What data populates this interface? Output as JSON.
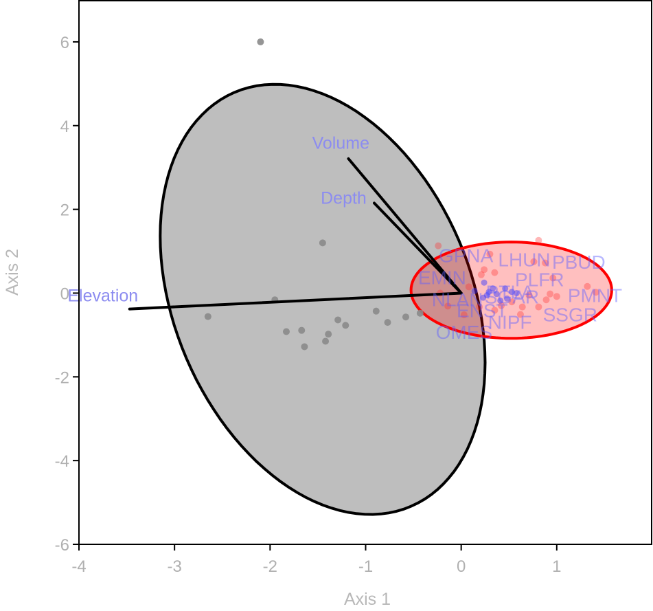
{
  "chart_data": {
    "type": "scatter",
    "xlabel": "Axis 1",
    "ylabel": "Axis 2",
    "xlim": [
      -4,
      2
    ],
    "ylim": [
      -6,
      7
    ],
    "x_ticks": [
      -4,
      -3,
      -2,
      -1,
      0,
      1
    ],
    "y_ticks": [
      -6,
      -4,
      -2,
      0,
      2,
      4,
      6
    ],
    "grid": false,
    "colors": {
      "group_gray": "#8a8a8a",
      "ellipse_gray": "#bebebe",
      "group_red": "#ff3030",
      "ellipse_red": "#ff0000",
      "species_blue": "#3030ff",
      "label_blue": "#7070f0"
    },
    "groups": [
      {
        "color": "gray",
        "points": [
          [
            -2.1,
            6.0
          ],
          [
            -1.45,
            1.2
          ],
          [
            -1.95,
            -0.16
          ],
          [
            -2.65,
            -0.56
          ],
          [
            -1.83,
            -0.92
          ],
          [
            -1.67,
            -0.89
          ],
          [
            -1.64,
            -1.28
          ],
          [
            -1.42,
            -1.15
          ],
          [
            -1.39,
            -0.98
          ],
          [
            -1.29,
            -0.64
          ],
          [
            -1.21,
            -0.77
          ],
          [
            -0.89,
            -0.43
          ],
          [
            -0.77,
            -0.7
          ],
          [
            -0.58,
            -0.57
          ],
          [
            -0.43,
            -0.48
          ]
        ],
        "ellipse": {
          "center": [
            -1.45,
            -0.15
          ],
          "axis_u": [
            1.7,
            -1.51
          ],
          "axis_v": [
            0,
            4.91
          ]
        }
      },
      {
        "color": "red",
        "points": [
          [
            -0.24,
            1.13
          ],
          [
            0.3,
            0.93
          ],
          [
            0.24,
            0.56
          ],
          [
            0.21,
            0.44
          ],
          [
            0.35,
            0.49
          ],
          [
            0.08,
            0.15
          ],
          [
            -0.22,
            0.0
          ],
          [
            -0.14,
            -0.31
          ],
          [
            0.03,
            -0.52
          ],
          [
            0.19,
            -0.33
          ],
          [
            0.62,
            -0.51
          ],
          [
            0.81,
            1.26
          ],
          [
            0.76,
            0.75
          ],
          [
            0.88,
            0.72
          ],
          [
            0.96,
            0.36
          ],
          [
            1.32,
            0.16
          ],
          [
            1.41,
            0.02
          ],
          [
            0.93,
            -0.02
          ],
          [
            1.0,
            -0.08
          ],
          [
            0.89,
            -0.16
          ],
          [
            0.81,
            -0.33
          ],
          [
            0.64,
            -0.33
          ],
          [
            0.42,
            -0.3
          ],
          [
            0.53,
            -0.21
          ],
          [
            0.71,
            -0.05
          ],
          [
            0.35,
            -0.41
          ]
        ],
        "ellipse": {
          "center": [
            0.525,
            0.07
          ],
          "axis_u": [
            1.05,
            0
          ],
          "axis_v": [
            0,
            1.15
          ]
        }
      }
    ],
    "species_points": [
      [
        0.24,
        0.25
      ],
      [
        0.33,
        0.11
      ],
      [
        0.27,
        -0.05
      ],
      [
        0.23,
        -0.11
      ],
      [
        0.29,
        0.03
      ],
      [
        0.37,
        -0.02
      ],
      [
        0.46,
        0.11
      ],
      [
        0.53,
        0.03
      ],
      [
        0.48,
        -0.13
      ],
      [
        0.41,
        -0.18
      ],
      [
        0.58,
        0.0
      ],
      [
        0.14,
        0.05
      ]
    ],
    "species_labels": [
      {
        "label": "GPNA",
        "x": 0.05,
        "y": 0.9
      },
      {
        "label": "LHUN",
        "x": 0.66,
        "y": 0.8
      },
      {
        "label": "PBUD",
        "x": 1.23,
        "y": 0.75
      },
      {
        "label": "EMIN",
        "x": -0.2,
        "y": 0.38
      },
      {
        "label": "PLFR",
        "x": 0.82,
        "y": 0.33
      },
      {
        "label": "PTLA",
        "x": 0.51,
        "y": 0.03
      },
      {
        "label": "NLAN",
        "x": -0.04,
        "y": -0.15
      },
      {
        "label": "SGAR",
        "x": 0.53,
        "y": -0.08
      },
      {
        "label": "PMNT",
        "x": 1.4,
        "y": -0.05
      },
      {
        "label": "ENST",
        "x": 0.22,
        "y": -0.41
      },
      {
        "label": "SSGR",
        "x": 1.14,
        "y": -0.51
      },
      {
        "label": "NIPF",
        "x": 0.51,
        "y": -0.69
      },
      {
        "label": "OMES",
        "x": 0.03,
        "y": -0.93
      }
    ],
    "vectors": [
      {
        "label": "Volume",
        "x": -1.18,
        "y": 3.21,
        "label_x": -1.26,
        "label_y": 3.59
      },
      {
        "label": "Depth",
        "x": -0.91,
        "y": 2.15,
        "label_x": -1.23,
        "label_y": 2.28
      },
      {
        "label": "Elevation",
        "x": -3.47,
        "y": -0.38,
        "label_x": -3.75,
        "label_y": -0.05
      }
    ]
  }
}
